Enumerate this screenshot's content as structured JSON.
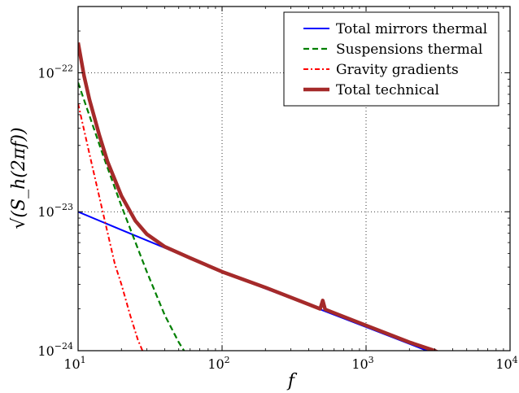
{
  "chart_data": {
    "type": "line",
    "xlabel": "f",
    "ylabel": "√(S_h(2πf))",
    "xscale": "log",
    "yscale": "log",
    "xlim": [
      10,
      10000
    ],
    "ylim": [
      1e-24,
      3e-22
    ],
    "grid": "dotted at decades",
    "legend_position": "top-right",
    "x_ticks": [
      {
        "value": 10,
        "base": "10",
        "exp": "1"
      },
      {
        "value": 100,
        "base": "10",
        "exp": "2"
      },
      {
        "value": 1000,
        "base": "10",
        "exp": "3"
      },
      {
        "value": 10000,
        "base": "10",
        "exp": "4"
      }
    ],
    "y_ticks": [
      {
        "value": 1e-24,
        "base": "10",
        "exp": "−24"
      },
      {
        "value": 1e-23,
        "base": "10",
        "exp": "−23"
      },
      {
        "value": 1e-22,
        "base": "10",
        "exp": "−22"
      }
    ],
    "series": [
      {
        "name": "Total mirrors thermal",
        "color": "#0000ff",
        "dash": "solid",
        "x": [
          10,
          20,
          40,
          60,
          100,
          200,
          500,
          1000,
          2000,
          3000
        ],
        "y": [
          1e-23,
          7.4e-24,
          5.5e-24,
          4.6e-24,
          3.7e-24,
          2.8e-24,
          1.95e-24,
          1.48e-24,
          1.12e-24,
          9.5e-25
        ]
      },
      {
        "name": "Suspensions thermal",
        "color": "#007f00",
        "dash": "dashed",
        "x": [
          10,
          15,
          20,
          30,
          40,
          50,
          58
        ],
        "y": [
          8.5e-23,
          2.5e-23,
          1.1e-23,
          3.7e-24,
          1.8e-24,
          1.15e-24,
          9e-25
        ]
      },
      {
        "name": "Gravity gradients",
        "color": "#ff0000",
        "dash": "dash-dot",
        "x": [
          10,
          12,
          15,
          18,
          20,
          23,
          26,
          28
        ],
        "y": [
          6e-23,
          2.6e-23,
          9.5e-24,
          4.2e-24,
          3e-24,
          1.8e-24,
          1.2e-24,
          1e-24
        ]
      },
      {
        "name": "Total technical",
        "color": "#a52a2a",
        "dash": "solid-thick",
        "x": [
          10,
          11,
          12,
          14,
          16,
          20,
          25,
          30,
          40,
          60,
          100,
          200,
          480,
          500,
          520,
          1000,
          2000,
          3000,
          3300
        ],
        "y": [
          1.65e-22,
          9.5e-23,
          6.4e-23,
          3.6e-23,
          2.3e-23,
          1.3e-23,
          8.6e-24,
          6.9e-24,
          5.6e-24,
          4.65e-24,
          3.7e-24,
          2.85e-24,
          2e-24,
          2.3e-24,
          1.98e-24,
          1.52e-24,
          1.15e-24,
          1e-24,
          9.5e-25
        ]
      }
    ]
  }
}
